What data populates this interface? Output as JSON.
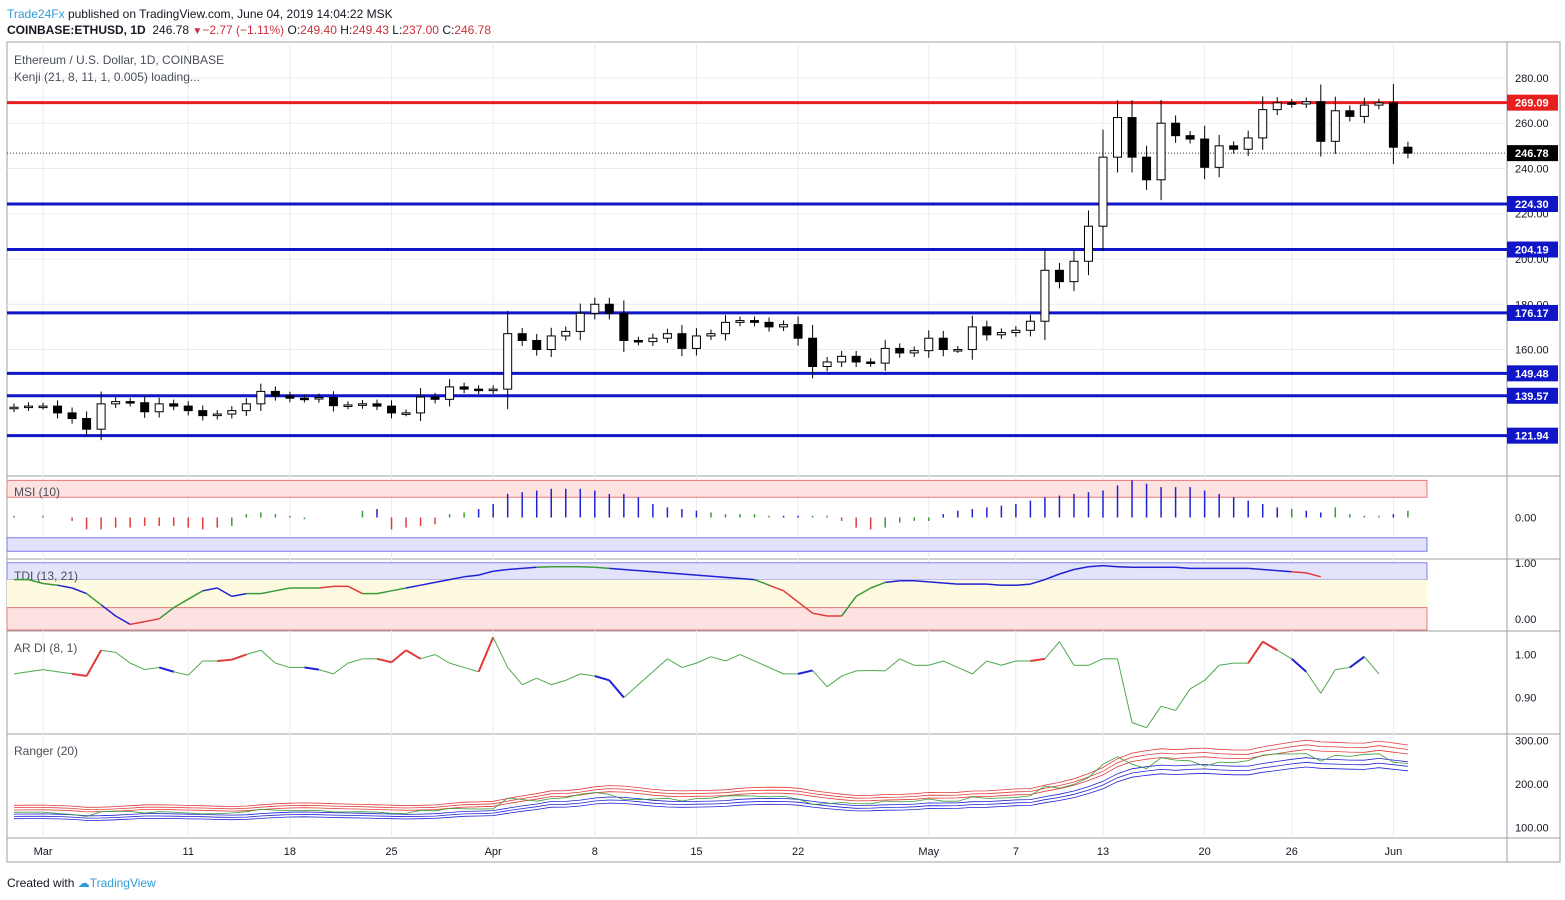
{
  "header": {
    "brand": "Trade24Fx",
    "published": "published on TradingView.com, June 04, 2019 14:04:22 MSK",
    "symbol": "COINBASE:ETHUSD, 1D",
    "last": "246.78",
    "change": "−2.77 (−1.11%)",
    "o_label": "O:",
    "o": "249.40",
    "h_label": "H:",
    "h": "249.43",
    "l_label": "L:",
    "l": "237.00",
    "c_label": "C:",
    "c": "246.78"
  },
  "footer": {
    "created": "Created with",
    "brand": "TradingView"
  },
  "colors": {
    "up": "#ffffff",
    "down": "#000000",
    "resistance": "#e81f1f",
    "support": "#1016c8",
    "grid": "#e8ebf0"
  },
  "chart_data": {
    "type": "candlestick",
    "title": "Ethereum / U.S. Dollar, 1D, COINBASE",
    "indicator_label": "Kenji (21, 8, 11, 1, 0.005) loading...",
    "ylim": [
      105,
      295
    ],
    "y_ticks": [
      "280.00",
      "260.00",
      "240.00",
      "220.00",
      "200.00",
      "180.00",
      "160.00"
    ],
    "x_labels": [
      {
        "label": "Mar",
        "i": 2
      },
      {
        "label": "11",
        "i": 12
      },
      {
        "label": "18",
        "i": 19
      },
      {
        "label": "25",
        "i": 26
      },
      {
        "label": "Apr",
        "i": 33
      },
      {
        "label": "8",
        "i": 40
      },
      {
        "label": "15",
        "i": 47
      },
      {
        "label": "22",
        "i": 54
      },
      {
        "label": "May",
        "i": 63
      },
      {
        "label": "7",
        "i": 69
      },
      {
        "label": "13",
        "i": 75
      },
      {
        "label": "20",
        "i": 82
      },
      {
        "label": "26",
        "i": 88
      },
      {
        "label": "Jun",
        "i": 95
      }
    ],
    "price_lines": [
      {
        "price": 269.09,
        "label": "269.09",
        "kind": "resistance"
      },
      {
        "price": 224.3,
        "label": "224.30",
        "kind": "support"
      },
      {
        "price": 204.19,
        "label": "204.19",
        "kind": "support"
      },
      {
        "price": 176.17,
        "label": "176.17",
        "kind": "support"
      },
      {
        "price": 149.48,
        "label": "149.48",
        "kind": "support"
      },
      {
        "price": 139.57,
        "label": "139.57",
        "kind": "support"
      },
      {
        "price": 121.94,
        "label": "121.94",
        "kind": "support"
      }
    ],
    "last_price": {
      "price": 246.78,
      "label": "246.78"
    },
    "closes": [
      134.5,
      135.0,
      135.0,
      132.0,
      129.5,
      124.8,
      136.0,
      137.0,
      136.5,
      132.5,
      136.0,
      135.0,
      133.0,
      130.8,
      131.5,
      133.0,
      136.0,
      141.5,
      139.5,
      138.5,
      138.2,
      138.8,
      135.2,
      135.5,
      136.0,
      135.0,
      132.0,
      132.0,
      139.0,
      138.0,
      143.5,
      142.5,
      142.0,
      142.5,
      167.0,
      164.0,
      160.0,
      166.0,
      168.0,
      176.0,
      180.0,
      176.0,
      164.0,
      163.5,
      165.0,
      167.0,
      160.5,
      166.0,
      167.0,
      172.0,
      172.8,
      172.0,
      170.0,
      171.0,
      165.0,
      152.5,
      154.5,
      157.0,
      154.5,
      154.0,
      160.5,
      158.5,
      159.5,
      165.0,
      160.0,
      160.0,
      170.0,
      166.5,
      167.5,
      168.5,
      172.5,
      195.0,
      190.0,
      199.0,
      214.5,
      245.0,
      262.5,
      245.0,
      235.0,
      260.0,
      254.5,
      253.0,
      240.5,
      250.0,
      248.5,
      253.5,
      266.0,
      269.0,
      268.5,
      269.5,
      252.0,
      265.5,
      263.0,
      268.0,
      269.0,
      249.4,
      246.78
    ]
  },
  "msi": {
    "label": "MSI (10)",
    "ticks": [
      "0.00"
    ],
    "ylim": [
      -1.2,
      1.2
    ],
    "values": [
      0.05,
      0,
      0.05,
      0,
      -0.1,
      -0.35,
      -0.35,
      -0.3,
      -0.3,
      -0.25,
      -0.25,
      -0.25,
      -0.3,
      -0.35,
      -0.3,
      -0.25,
      0.1,
      0.15,
      0.1,
      0.05,
      -0.05,
      0,
      0,
      0,
      0.2,
      0.25,
      -0.35,
      -0.3,
      -0.25,
      -0.2,
      0.1,
      0.15,
      0.25,
      0.4,
      0.7,
      0.75,
      0.8,
      0.85,
      0.85,
      0.85,
      0.8,
      0.7,
      0.7,
      0.6,
      0.4,
      0.3,
      0.25,
      0.2,
      0.15,
      0.1,
      0.1,
      0.1,
      0.05,
      0.05,
      0.05,
      0.05,
      0.05,
      -0.1,
      -0.3,
      -0.35,
      -0.3,
      -0.15,
      -0.1,
      -0.1,
      0.1,
      0.2,
      0.25,
      0.3,
      0.35,
      0.4,
      0.5,
      0.6,
      0.65,
      0.7,
      0.75,
      0.8,
      0.95,
      1.1,
      1.0,
      0.9,
      0.9,
      0.9,
      0.8,
      0.7,
      0.6,
      0.5,
      0.4,
      0.3,
      0.25,
      0.2,
      0.15,
      0.3,
      0.1,
      0.05,
      0.05,
      0.1,
      0.2,
      -0.1
    ],
    "colors": [
      "#3a9a3a",
      "#3a9a3a",
      "#3a9a3a",
      "#3a9a3a",
      "#e23b3b",
      "#e23b3b",
      "#e23b3b",
      "#e23b3b",
      "#e23b3b",
      "#e23b3b",
      "#e23b3b",
      "#e23b3b",
      "#e23b3b",
      "#e23b3b",
      "#e23b3b",
      "#3a9a3a",
      "#3a9a3a",
      "#3a9a3a",
      "#3a9a3a",
      "#3a9a3a",
      "#3a9a3a",
      "#3a9a3a",
      "#3a9a3a",
      "#3a9a3a",
      "#3a9a3a",
      "#1f22d4",
      "#e23b3b",
      "#e23b3b",
      "#e23b3b",
      "#e23b3b",
      "#3a9a3a",
      "#3a9a3a",
      "#1f22d4",
      "#1f22d4",
      "#1f22d4",
      "#1f22d4",
      "#1f22d4",
      "#1f22d4",
      "#1f22d4",
      "#1f22d4",
      "#1f22d4",
      "#1f22d4",
      "#1f22d4",
      "#1f22d4",
      "#1f22d4",
      "#1f22d4",
      "#1f22d4",
      "#1f22d4",
      "#3a9a3a",
      "#3a9a3a",
      "#3a9a3a",
      "#3a9a3a",
      "#3a9a3a",
      "#1f22d4",
      "#1f22d4",
      "#3a9a3a",
      "#3a9a3a",
      "#e23b3b",
      "#e23b3b",
      "#e23b3b",
      "#3a9a3a",
      "#3a9a3a",
      "#3a9a3a",
      "#3a9a3a",
      "#1f22d4",
      "#1f22d4",
      "#1f22d4",
      "#1f22d4",
      "#1f22d4",
      "#1f22d4",
      "#1f22d4",
      "#1f22d4",
      "#1f22d4",
      "#1f22d4",
      "#1f22d4",
      "#1f22d4",
      "#1f22d4",
      "#1f22d4",
      "#1f22d4",
      "#1f22d4",
      "#1f22d4",
      "#1f22d4",
      "#1f22d4",
      "#1f22d4",
      "#1f22d4",
      "#1f22d4",
      "#1f22d4",
      "#1f22d4",
      "#3a9a3a",
      "#1f22d4",
      "#1f22d4",
      "#3a9a3a",
      "#3a9a3a",
      "#3a9a3a",
      "#3a9a3a",
      "#1f22d4",
      "#3a9a3a"
    ]
  },
  "tdi": {
    "label": "TDI (13, 21)",
    "ticks": [
      "1.00",
      "0.00"
    ],
    "ylim": [
      -0.2,
      1.05
    ],
    "values": [
      0.7,
      0.7,
      0.63,
      0.6,
      0.55,
      0.45,
      0.25,
      0.05,
      -0.1,
      -0.05,
      0.0,
      0.2,
      0.35,
      0.5,
      0.55,
      0.4,
      0.45,
      0.45,
      0.5,
      0.55,
      0.55,
      0.55,
      0.58,
      0.58,
      0.45,
      0.45,
      0.5,
      0.55,
      0.6,
      0.65,
      0.7,
      0.75,
      0.78,
      0.85,
      0.88,
      0.9,
      0.92,
      0.93,
      0.93,
      0.93,
      0.92,
      0.9,
      0.88,
      0.86,
      0.84,
      0.82,
      0.8,
      0.78,
      0.76,
      0.74,
      0.72,
      0.7,
      0.6,
      0.5,
      0.3,
      0.1,
      0.05,
      0.05,
      0.4,
      0.55,
      0.65,
      0.68,
      0.68,
      0.66,
      0.64,
      0.62,
      0.62,
      0.62,
      0.6,
      0.6,
      0.62,
      0.7,
      0.8,
      0.88,
      0.93,
      0.95,
      0.93,
      0.92,
      0.92,
      0.92,
      0.92,
      0.9,
      0.9,
      0.9,
      0.9,
      0.9,
      0.88,
      0.86,
      0.84,
      0.82,
      0.75,
      0.5
    ],
    "colors": [
      "#3a9a3a",
      "#3a9a3a",
      "#3a9a3a",
      "#3a9a3a",
      "#1f22d4",
      "#1f22d4",
      "#3a9a3a",
      "#1f22d4",
      "#1f22d4",
      "#e23b3b",
      "#e23b3b",
      "#3a9a3a",
      "#3a9a3a",
      "#3a9a3a",
      "#1f22d4",
      "#1f22d4",
      "#1f22d4",
      "#3a9a3a",
      "#3a9a3a",
      "#3a9a3a",
      "#3a9a3a",
      "#3a9a3a",
      "#e23b3b",
      "#e23b3b",
      "#e23b3b",
      "#3a9a3a",
      "#3a9a3a",
      "#3a9a3a",
      "#1f22d4",
      "#1f22d4",
      "#1f22d4",
      "#1f22d4",
      "#1f22d4",
      "#1f22d4",
      "#1f22d4",
      "#1f22d4",
      "#1f22d4",
      "#3a9a3a",
      "#3a9a3a",
      "#3a9a3a",
      "#3a9a3a",
      "#3a9a3a",
      "#1f22d4",
      "#1f22d4",
      "#1f22d4",
      "#1f22d4",
      "#1f22d4",
      "#1f22d4",
      "#1f22d4",
      "#1f22d4",
      "#1f22d4",
      "#1f22d4",
      "#3a9a3a",
      "#e23b3b",
      "#e23b3b",
      "#e23b3b",
      "#e23b3b",
      "#e23b3b",
      "#3a9a3a",
      "#3a9a3a",
      "#3a9a3a",
      "#1f22d4",
      "#1f22d4",
      "#1f22d4",
      "#1f22d4",
      "#1f22d4",
      "#1f22d4",
      "#1f22d4",
      "#1f22d4",
      "#1f22d4",
      "#1f22d4",
      "#1f22d4",
      "#1f22d4",
      "#1f22d4",
      "#1f22d4",
      "#1f22d4",
      "#1f22d4",
      "#1f22d4",
      "#1f22d4",
      "#1f22d4",
      "#1f22d4",
      "#1f22d4",
      "#1f22d4",
      "#1f22d4",
      "#1f22d4",
      "#1f22d4",
      "#1f22d4",
      "#1f22d4",
      "#1f22d4",
      "#e23b3b",
      "#e23b3b"
    ]
  },
  "ardi": {
    "label": "AR DI (8, 1)",
    "ticks": [
      "1.00",
      "0.90"
    ],
    "ylim": [
      0.82,
      1.05
    ],
    "values": [
      0.955,
      0.96,
      0.965,
      0.96,
      0.955,
      0.95,
      1.01,
      1.005,
      0.98,
      0.965,
      0.97,
      0.96,
      0.952,
      0.985,
      0.985,
      0.988,
      1.0,
      1.01,
      0.98,
      0.97,
      0.97,
      0.965,
      0.955,
      0.98,
      0.99,
      0.99,
      0.982,
      1.01,
      0.99,
      1.0,
      0.98,
      0.97,
      0.96,
      1.04,
      0.97,
      0.93,
      0.945,
      0.93,
      0.94,
      0.955,
      0.95,
      0.94,
      0.9,
      0.93,
      0.96,
      0.99,
      0.97,
      0.98,
      0.995,
      0.985,
      1.0,
      0.985,
      0.97,
      0.955,
      0.955,
      0.963,
      0.925,
      0.95,
      0.962,
      0.963,
      0.962,
      0.99,
      0.975,
      0.975,
      0.985,
      0.97,
      0.955,
      0.985,
      0.975,
      0.985,
      0.985,
      0.99,
      1.03,
      0.975,
      0.975,
      0.99,
      0.99,
      0.842,
      0.83,
      0.88,
      0.87,
      0.92,
      0.94,
      0.975,
      0.98,
      0.98,
      1.03,
      1.01,
      0.99,
      0.96,
      0.91,
      0.965,
      0.97,
      0.995,
      0.955,
      0.956
    ],
    "colors": [
      "#4ea84e",
      "#4ea84e",
      "#4ea84e",
      "#4ea84e",
      "#4ea84e",
      "#e23b3b",
      "#e23b3b",
      "#4ea84e",
      "#4ea84e",
      "#4ea84e",
      "#4ea84e",
      "#1f22d4",
      "#4ea84e",
      "#4ea84e",
      "#4ea84e",
      "#e23b3b",
      "#e23b3b",
      "#4ea84e",
      "#4ea84e",
      "#4ea84e",
      "#4ea84e",
      "#1f22d4",
      "#4ea84e",
      "#4ea84e",
      "#4ea84e",
      "#4ea84e",
      "#e23b3b",
      "#e23b3b",
      "#e23b3b",
      "#4ea84e",
      "#4ea84e",
      "#4ea84e",
      "#4ea84e",
      "#e23b3b",
      "#4ea84e",
      "#4ea84e",
      "#4ea84e",
      "#4ea84e",
      "#4ea84e",
      "#4ea84e",
      "#4ea84e",
      "#1f22d4",
      "#1f22d4",
      "#4ea84e",
      "#4ea84e",
      "#4ea84e",
      "#4ea84e",
      "#4ea84e",
      "#4ea84e",
      "#4ea84e",
      "#4ea84e",
      "#4ea84e",
      "#4ea84e",
      "#4ea84e",
      "#4ea84e",
      "#1f22d4",
      "#4ea84e",
      "#4ea84e",
      "#4ea84e",
      "#4ea84e",
      "#4ea84e",
      "#4ea84e",
      "#4ea84e",
      "#4ea84e",
      "#4ea84e",
      "#4ea84e",
      "#4ea84e",
      "#4ea84e",
      "#4ea84e",
      "#4ea84e",
      "#4ea84e",
      "#e23b3b",
      "#4ea84e",
      "#4ea84e",
      "#4ea84e",
      "#4ea84e",
      "#4ea84e",
      "#4ea84e",
      "#4ea84e",
      "#4ea84e",
      "#4ea84e",
      "#4ea84e",
      "#4ea84e",
      "#4ea84e",
      "#4ea84e",
      "#4ea84e",
      "#e23b3b",
      "#e23b3b",
      "#4ea84e",
      "#1f22d4",
      "#4ea84e",
      "#4ea84e",
      "#4ea84e",
      "#1f22d4",
      "#4ea84e"
    ]
  },
  "ranger": {
    "label": "Ranger (20)",
    "ticks": [
      "300.00",
      "200.00",
      "100.00"
    ],
    "ylim": [
      80,
      310
    ]
  }
}
